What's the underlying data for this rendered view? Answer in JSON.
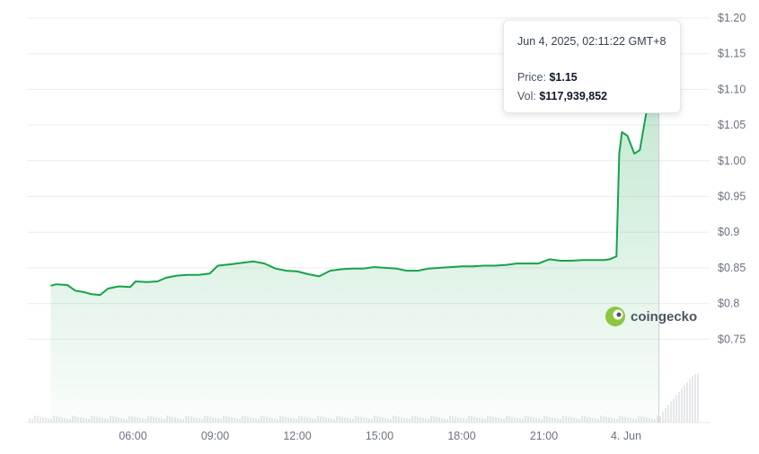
{
  "chart_data": {
    "type": "area",
    "x_ticks": [
      "06:00",
      "09:00",
      "12:00",
      "15:00",
      "18:00",
      "21:00",
      "4. Jun"
    ],
    "y_ticks": [
      "$1.20",
      "$1.15",
      "$1.10",
      "$1.05",
      "$1.00",
      "$0.95",
      "$0.9",
      "$0.85",
      "$0.8",
      "$0.75"
    ],
    "ylim": [
      0.7,
      1.2
    ],
    "x_range_hours": [
      3.0,
      27.5
    ],
    "series": [
      {
        "points": [
          [
            3.0,
            0.825
          ],
          [
            3.2,
            0.827
          ],
          [
            3.6,
            0.826
          ],
          [
            3.9,
            0.818
          ],
          [
            4.2,
            0.816
          ],
          [
            4.5,
            0.813
          ],
          [
            4.8,
            0.812
          ],
          [
            5.1,
            0.821
          ],
          [
            5.5,
            0.824
          ],
          [
            5.9,
            0.823
          ],
          [
            6.1,
            0.831
          ],
          [
            6.5,
            0.83
          ],
          [
            6.9,
            0.831
          ],
          [
            7.2,
            0.836
          ],
          [
            7.6,
            0.839
          ],
          [
            8.0,
            0.84
          ],
          [
            8.4,
            0.84
          ],
          [
            8.8,
            0.842
          ],
          [
            9.1,
            0.853
          ],
          [
            9.6,
            0.855
          ],
          [
            10.0,
            0.857
          ],
          [
            10.4,
            0.859
          ],
          [
            10.8,
            0.856
          ],
          [
            11.2,
            0.849
          ],
          [
            11.6,
            0.846
          ],
          [
            12.0,
            0.845
          ],
          [
            12.4,
            0.841
          ],
          [
            12.8,
            0.838
          ],
          [
            13.2,
            0.846
          ],
          [
            13.6,
            0.848
          ],
          [
            14.0,
            0.849
          ],
          [
            14.4,
            0.849
          ],
          [
            14.8,
            0.851
          ],
          [
            15.2,
            0.85
          ],
          [
            15.6,
            0.849
          ],
          [
            16.0,
            0.846
          ],
          [
            16.4,
            0.846
          ],
          [
            16.8,
            0.849
          ],
          [
            17.2,
            0.85
          ],
          [
            17.6,
            0.851
          ],
          [
            18.0,
            0.852
          ],
          [
            18.4,
            0.852
          ],
          [
            18.8,
            0.853
          ],
          [
            19.2,
            0.853
          ],
          [
            19.6,
            0.854
          ],
          [
            20.0,
            0.856
          ],
          [
            20.4,
            0.856
          ],
          [
            20.8,
            0.856
          ],
          [
            21.2,
            0.862
          ],
          [
            21.6,
            0.86
          ],
          [
            22.0,
            0.86
          ],
          [
            22.4,
            0.861
          ],
          [
            22.8,
            0.861
          ],
          [
            23.2,
            0.861
          ],
          [
            23.4,
            0.862
          ],
          [
            23.65,
            0.866
          ],
          [
            23.75,
            1.01
          ],
          [
            23.85,
            1.04
          ],
          [
            24.05,
            1.035
          ],
          [
            24.3,
            1.01
          ],
          [
            24.5,
            1.015
          ],
          [
            24.75,
            1.07
          ],
          [
            24.95,
            1.11
          ],
          [
            25.05,
            1.145
          ],
          [
            25.2,
            1.148
          ]
        ]
      }
    ],
    "colors": {
      "line": "#16a34a",
      "fill": "#16a34a",
      "grid": "#ececec"
    },
    "grid": true
  },
  "tooltip": {
    "date": "Jun 4, 2025, 02:11:22 GMT+8",
    "price_label": "Price:",
    "price_value": "$1.15",
    "vol_label": "Vol:",
    "vol_value": "$117,939,852"
  },
  "watermark": {
    "text": "coingecko",
    "icon": "coingecko-gecko-icon"
  }
}
